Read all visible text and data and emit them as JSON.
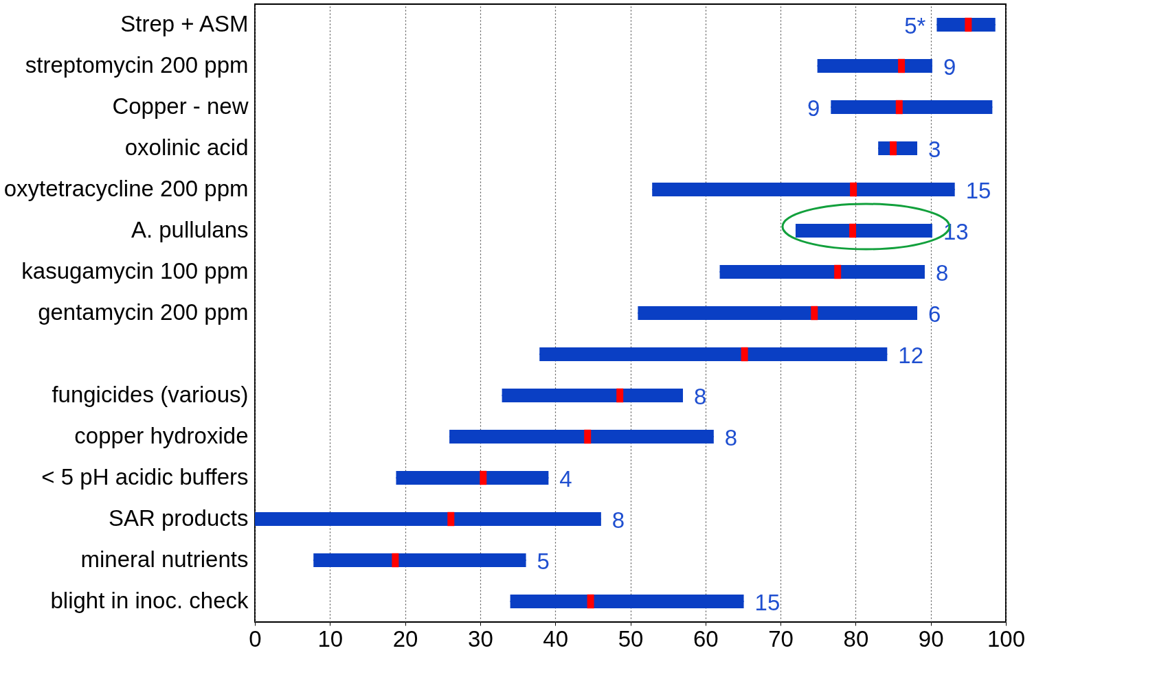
{
  "chart_data": {
    "type": "box",
    "orientation": "horizontal",
    "categories": [
      "Strep +  ASM",
      "streptomycin 200 ppm",
      "Copper - new",
      "oxolinic acid",
      "oxytetracycline 200 ppm",
      "A. pullulans",
      "kasugamycin 100 ppm",
      "gentamycin 200 ppm",
      null,
      "fungicides (various)",
      "copper hydroxide",
      "< 5 pH acidic buffers",
      "SAR products",
      "mineral nutrients",
      "blight in inoc. check"
    ],
    "series": [
      {
        "color": "#0a3fc4",
        "boxes": [
          {
            "low": 90.8,
            "q1": 90.8,
            "median": 95.0,
            "q3": 98.6,
            "high": 98.6
          },
          {
            "low": 74.9,
            "q1": 74.9,
            "median": 86.1,
            "q3": 90.2,
            "high": 90.2
          },
          {
            "low": 76.7,
            "q1": 76.7,
            "median": 85.8,
            "q3": 98.2,
            "high": 98.2
          },
          {
            "low": 83.0,
            "q1": 83.0,
            "median": 85.0,
            "q3": 88.2,
            "high": 88.2
          },
          {
            "low": 52.9,
            "q1": 52.9,
            "median": 79.7,
            "q3": 93.2,
            "high": 93.2
          },
          {
            "low": 72.0,
            "q1": 72.0,
            "median": 79.6,
            "q3": 90.2,
            "high": 90.2
          },
          {
            "low": 61.9,
            "q1": 61.9,
            "median": 77.6,
            "q3": 89.2,
            "high": 89.2
          },
          {
            "low": 51.0,
            "q1": 51.0,
            "median": 74.5,
            "q3": 88.2,
            "high": 88.2
          },
          {
            "low": 37.9,
            "q1": 37.9,
            "median": 65.2,
            "q3": 84.2,
            "high": 84.2
          },
          {
            "low": 32.9,
            "q1": 32.9,
            "median": 48.6,
            "q3": 57.0,
            "high": 57.0
          },
          {
            "low": 25.9,
            "q1": 25.9,
            "median": 44.3,
            "q3": 61.1,
            "high": 61.1
          },
          {
            "low": 18.8,
            "q1": 18.8,
            "median": 30.4,
            "q3": 39.1,
            "high": 39.1
          },
          {
            "low": 0,
            "q1": 0,
            "median": 26.1,
            "q3": 46.1,
            "high": 46.1
          },
          {
            "low": 7.8,
            "q1": 7.8,
            "median": 18.7,
            "q3": 36.1,
            "high": 36.1
          },
          {
            "low": 34.0,
            "q1": 34.0,
            "median": 44.7,
            "q3": 65.1,
            "high": 65.1
          }
        ]
      }
    ],
    "annotations": [
      "5*",
      "9",
      "9",
      "3",
      "15",
      "13",
      "8",
      "6",
      "12",
      "8",
      "8",
      "4",
      "8",
      "5",
      "15"
    ],
    "xlim": [
      0,
      100
    ],
    "xticks": [
      0,
      10,
      20,
      30,
      40,
      50,
      60,
      70,
      80,
      90,
      100
    ],
    "grid": "x"
  }
}
